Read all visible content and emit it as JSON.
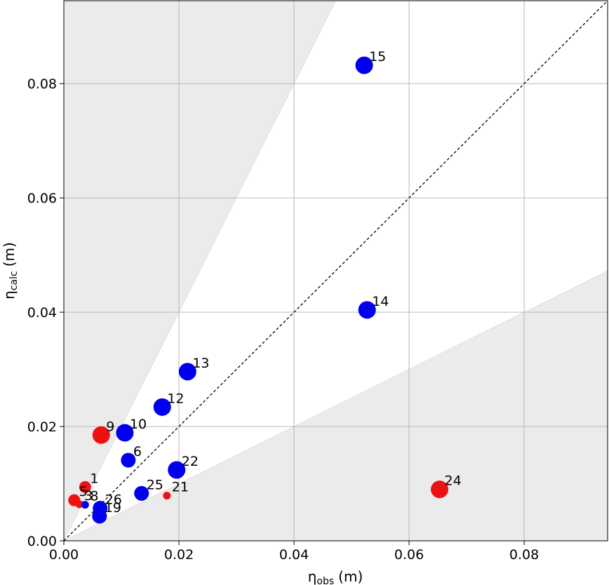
{
  "chart_data": {
    "type": "scatter",
    "xlabel": {
      "symbol": "η",
      "sub": "obs",
      "unit": "(m)"
    },
    "ylabel": {
      "symbol": "η",
      "sub": "calc",
      "unit": "(m)"
    },
    "xlim": [
      0,
      0.0945
    ],
    "ylim": [
      0,
      0.0945
    ],
    "xticks": [
      "0.00",
      "0.02",
      "0.04",
      "0.06",
      "0.08"
    ],
    "yticks": [
      "0.00",
      "0.02",
      "0.04",
      "0.06",
      "0.08"
    ],
    "xtick_values": [
      0,
      0.02,
      0.04,
      0.06,
      0.08
    ],
    "ytick_values": [
      0,
      0.02,
      0.04,
      0.06,
      0.08
    ],
    "grid": true,
    "reference_line": {
      "style": "dashed",
      "color": "#000000",
      "slope": 1
    },
    "shaded_regions": [
      {
        "description": "above factor-2 band",
        "lower_slope": 2,
        "color": "#ebebeb"
      },
      {
        "description": "below factor-2 band",
        "upper_slope": 0.5,
        "color": "#ebebeb"
      }
    ],
    "colors": {
      "blue": "#0000ee",
      "red": "#ee1111"
    },
    "points": [
      {
        "label": "15",
        "x": 0.0522,
        "y": 0.0832,
        "color": "blue",
        "size": "large"
      },
      {
        "label": "14",
        "x": 0.0527,
        "y": 0.0404,
        "color": "blue",
        "size": "large"
      },
      {
        "label": "13",
        "x": 0.0215,
        "y": 0.0296,
        "color": "blue",
        "size": "large"
      },
      {
        "label": "12",
        "x": 0.0171,
        "y": 0.0234,
        "color": "blue",
        "size": "large"
      },
      {
        "label": "10",
        "x": 0.0106,
        "y": 0.0189,
        "color": "blue",
        "size": "large"
      },
      {
        "label": "9",
        "x": 0.0065,
        "y": 0.0185,
        "color": "red",
        "size": "large"
      },
      {
        "label": "6",
        "x": 0.0112,
        "y": 0.0141,
        "color": "blue",
        "size": "medium"
      },
      {
        "label": "22",
        "x": 0.0196,
        "y": 0.0124,
        "color": "blue",
        "size": "large"
      },
      {
        "label": "25",
        "x": 0.0135,
        "y": 0.0083,
        "color": "blue",
        "size": "medium"
      },
      {
        "label": "21",
        "x": 0.0179,
        "y": 0.0079,
        "color": "red",
        "size": "tiny"
      },
      {
        "label": "24",
        "x": 0.0653,
        "y": 0.009,
        "color": "red",
        "size": "large"
      },
      {
        "label": "1",
        "x": 0.0037,
        "y": 0.0094,
        "color": "red",
        "size": "small"
      },
      {
        "label": "5",
        "x": 0.0018,
        "y": 0.0071,
        "color": "red",
        "size": "small"
      },
      {
        "label": "3",
        "x": 0.0027,
        "y": 0.0064,
        "color": "red",
        "size": "tiny"
      },
      {
        "label": "8",
        "x": 0.0037,
        "y": 0.0063,
        "color": "blue",
        "size": "tiny"
      },
      {
        "label": "26",
        "x": 0.0063,
        "y": 0.0057,
        "color": "blue",
        "size": "medium"
      },
      {
        "label": "19",
        "x": 0.0062,
        "y": 0.0043,
        "color": "blue",
        "size": "medium"
      }
    ]
  }
}
